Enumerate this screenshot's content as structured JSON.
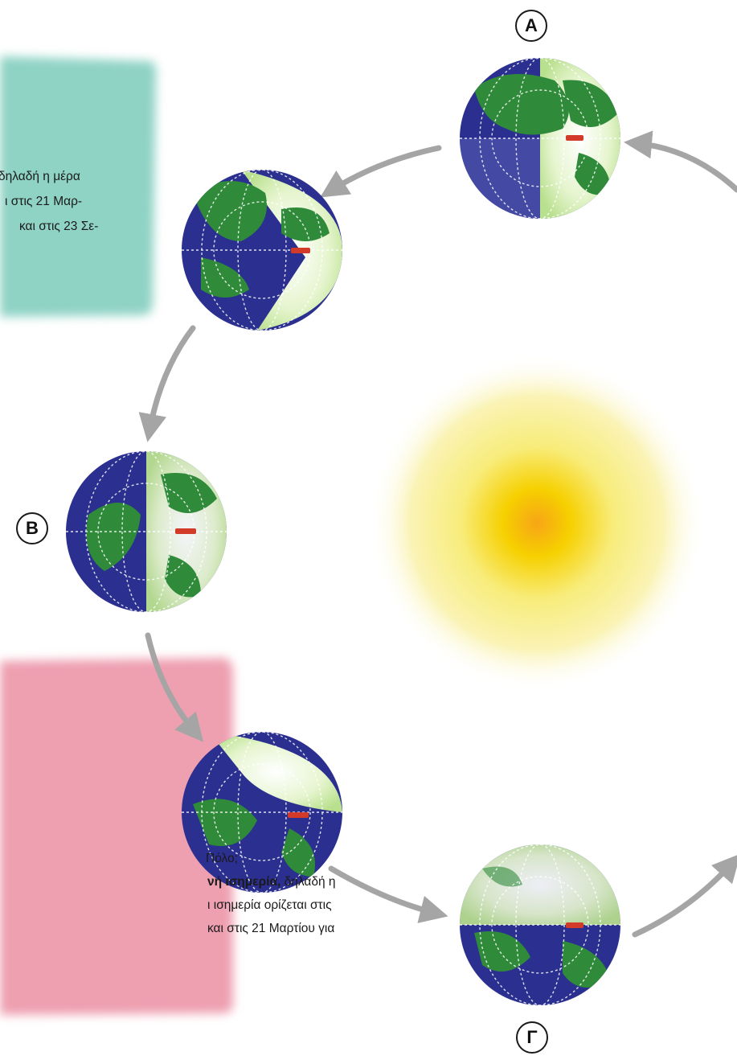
{
  "top_note": {
    "lines": [
      "δηλαδή η μέρα",
      "ι στις 21 Μαρ-",
      "και στις 23 Σε-"
    ]
  },
  "bottom_note": {
    "lines": [
      {
        "text": "Πόλο;"
      },
      {
        "bold": "νή ισημερία,",
        "text": " δηλαδή η"
      },
      {
        "text": "ι ισημερία ορίζεται στις"
      },
      {
        "text": "και στις 21 Μαρτίου για"
      }
    ]
  },
  "labels": {
    "a": "Α",
    "b": "Β",
    "g": "Γ"
  },
  "colors": {
    "teal_panel": "#8fd3c5",
    "pink_panel": "#ee9fb0",
    "ocean": "#2b2f8f",
    "land": "#2f8a3a",
    "daylight": "#e8f5d2",
    "sun_core": "#f6c400",
    "arrow": "#a7a7a7",
    "axis": "#d23a2a"
  }
}
